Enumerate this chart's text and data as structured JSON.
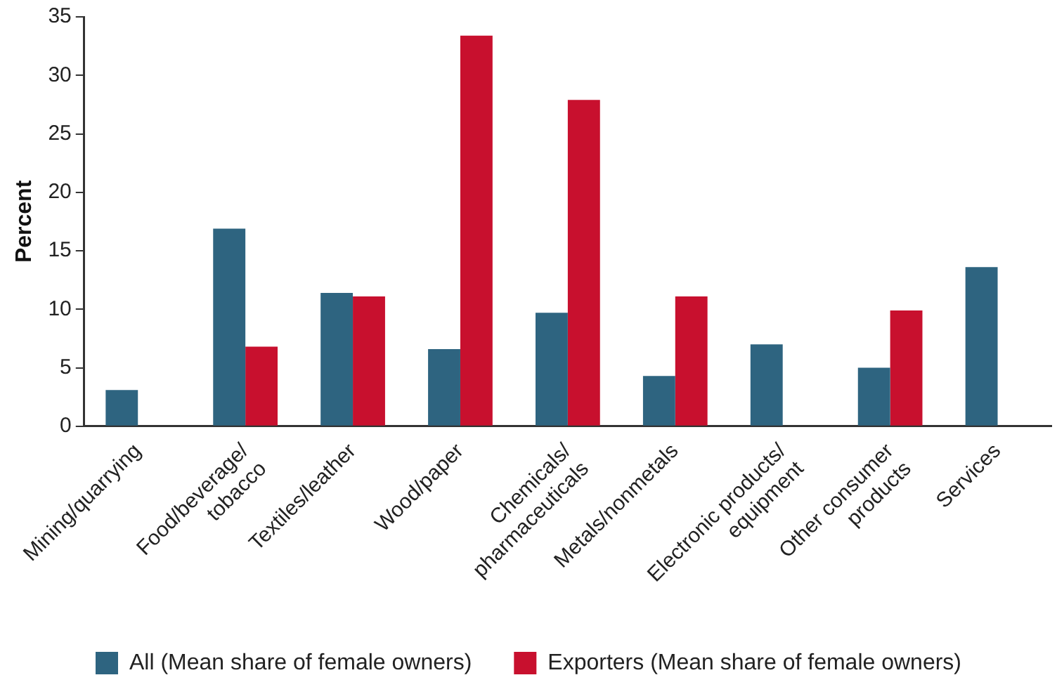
{
  "chart_data": {
    "type": "bar",
    "ylabel": "Percent",
    "categories": [
      "Mining/quarrying",
      "Food/beverage/\ntobacco",
      "Textiles/leather",
      "Wood/paper",
      "Chemicals/\npharmaceuticals",
      "Metals/nonmetals",
      "Electronic products/\nequipment",
      "Other consumer\nproducts",
      "Services"
    ],
    "series": [
      {
        "name": "All (Mean share of female owners)",
        "color": "#2e6480",
        "values": [
          3.1,
          16.9,
          11.4,
          6.6,
          9.7,
          4.3,
          7.0,
          5.0,
          13.6
        ]
      },
      {
        "name": "Exporters (Mean share of female owners)",
        "color": "#c8102e",
        "values": [
          null,
          6.8,
          11.1,
          33.4,
          27.9,
          11.1,
          null,
          9.9,
          null
        ]
      }
    ],
    "ylim": [
      0,
      35
    ],
    "yticks": [
      0,
      5,
      10,
      15,
      20,
      25,
      30,
      35
    ],
    "grid": false,
    "legend": "bottom"
  }
}
